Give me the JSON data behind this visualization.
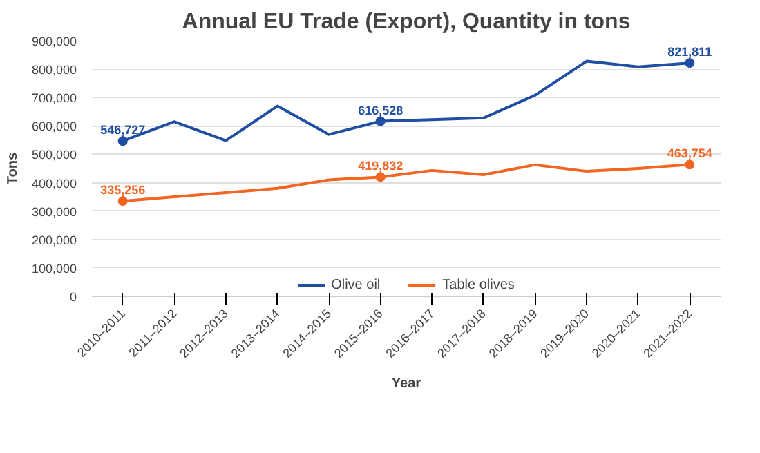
{
  "chart_data": {
    "type": "line",
    "title": "Annual EU Trade (Export), Quantity in tons",
    "xlabel": "Year",
    "ylabel": "Tons",
    "categories": [
      "2010–2011",
      "2011–2012",
      "2012–2013",
      "2013–2014",
      "2014–2015",
      "2015–2016",
      "2016–2017",
      "2017–2018",
      "2018–2019",
      "2019–2020",
      "2020–2021",
      "2021–2022"
    ],
    "series": [
      {
        "name": "Olive oil",
        "color": "#1f4ea3",
        "values": [
          546727,
          615000,
          548000,
          670000,
          570000,
          616528,
          622000,
          628000,
          708000,
          828000,
          808000,
          821811
        ],
        "value_labels": [
          "546,727",
          null,
          null,
          null,
          null,
          "616,528",
          null,
          null,
          null,
          null,
          null,
          "821,811"
        ]
      },
      {
        "name": "Table olives",
        "color": "#f26522",
        "values": [
          335256,
          350000,
          365000,
          380000,
          410000,
          419832,
          443000,
          428000,
          463000,
          440000,
          450000,
          463754
        ],
        "value_labels": [
          "335,256",
          null,
          null,
          null,
          null,
          "419,832",
          null,
          null,
          null,
          null,
          null,
          "463,754"
        ]
      }
    ],
    "ylim": [
      0,
      900000
    ],
    "yticks": [
      {
        "value": 0,
        "label": "0"
      },
      {
        "value": 100000,
        "label": "100,000"
      },
      {
        "value": 200000,
        "label": "200,000"
      },
      {
        "value": 300000,
        "label": "300,000"
      },
      {
        "value": 400000,
        "label": "400,000"
      },
      {
        "value": 500000,
        "label": "500,000"
      },
      {
        "value": 600000,
        "label": "600,000"
      },
      {
        "value": 700000,
        "label": "700,000"
      },
      {
        "value": 800000,
        "label": "800,000"
      },
      {
        "value": 900000,
        "label": "900,000"
      }
    ],
    "grid": "y",
    "legend": "bottom",
    "line_style": "solid"
  }
}
